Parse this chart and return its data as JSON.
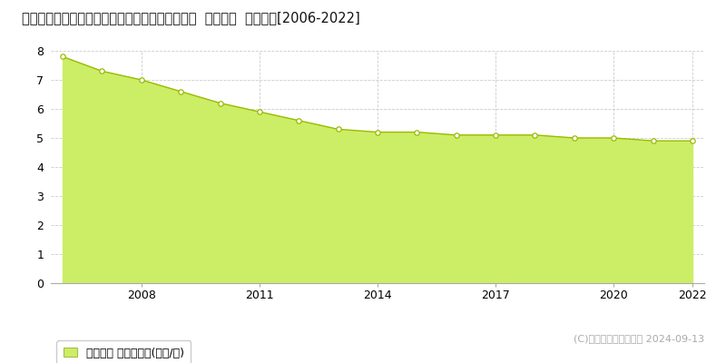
{
  "title": "宮城県登米市石越町南郷字小谷地前１１９番５外  地価公示  地価推移[2006-2022]",
  "years": [
    2006,
    2007,
    2008,
    2009,
    2010,
    2011,
    2012,
    2013,
    2014,
    2015,
    2016,
    2017,
    2018,
    2019,
    2020,
    2021,
    2022
  ],
  "values": [
    7.8,
    7.3,
    7.0,
    6.6,
    6.2,
    5.9,
    5.6,
    5.3,
    5.2,
    5.2,
    5.1,
    5.1,
    5.1,
    5.0,
    5.0,
    4.9,
    4.9
  ],
  "fill_color": "#ccee66",
  "line_color": "#99bb00",
  "marker_facecolor": "#ffffff",
  "marker_edgecolor": "#99bb00",
  "background_color": "#ffffff",
  "plot_bg_color": "#ffffff",
  "grid_color": "#cccccc",
  "ylim": [
    0,
    8
  ],
  "yticks": [
    0,
    1,
    2,
    3,
    4,
    5,
    6,
    7,
    8
  ],
  "xtick_labels": [
    "2008",
    "2011",
    "2014",
    "2017",
    "2020",
    "2022"
  ],
  "xtick_positions": [
    2008,
    2011,
    2014,
    2017,
    2020,
    2022
  ],
  "legend_label": "地価公示 平均坪単価(万円/坪)",
  "legend_color": "#ccee66",
  "legend_edgecolor": "#aabb44",
  "copyright_text": "(C)土地価格ドットコム 2024-09-13",
  "title_fontsize": 10.5,
  "axis_fontsize": 9,
  "legend_fontsize": 9,
  "copyright_fontsize": 8
}
